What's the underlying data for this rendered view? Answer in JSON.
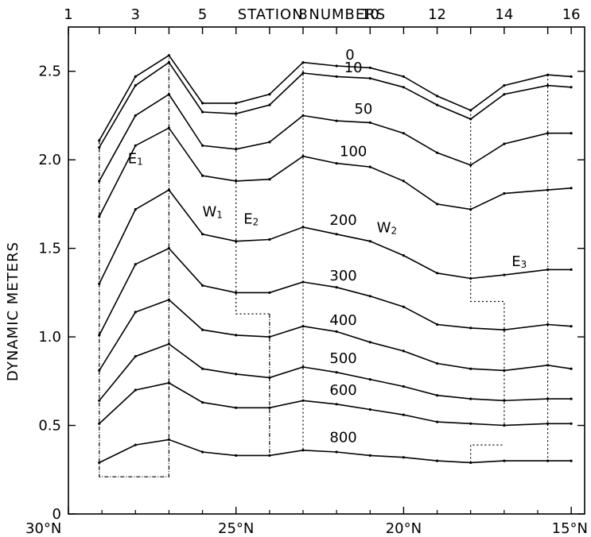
{
  "chart_data": {
    "type": "line",
    "title": "",
    "xlabel": "",
    "ylabel": "DYNAMIC METERS",
    "top_axis_label": "STATION NUMBERS",
    "ylim": [
      0,
      2.75
    ],
    "xlim": [
      30.0,
      14.6
    ],
    "y_ticks": [
      0,
      0.5,
      1.0,
      1.5,
      2.0,
      2.5
    ],
    "y_tick_labels": [
      "0",
      "0.5",
      "1.0",
      "1.5",
      "2.0",
      "2.5"
    ],
    "x_ticks": [
      30,
      25,
      20,
      15
    ],
    "x_tick_labels": [
      "30°N",
      "25°N",
      "20°N",
      "15°N"
    ],
    "top_ticks": [
      {
        "station": 1,
        "lat": 30.0
      },
      {
        "station": 2,
        "lat": 29.08
      },
      {
        "station": 3,
        "lat": 28.0
      },
      {
        "station": 4,
        "lat": 27.0
      },
      {
        "station": 5,
        "lat": 26.0
      },
      {
        "station": 6,
        "lat": 25.0
      },
      {
        "station": 7,
        "lat": 24.0
      },
      {
        "station": 8,
        "lat": 23.0
      },
      {
        "station": 9,
        "lat": 22.0
      },
      {
        "station": 10,
        "lat": 21.0
      },
      {
        "station": 11,
        "lat": 20.0
      },
      {
        "station": 12,
        "lat": 19.0
      },
      {
        "station": 13,
        "lat": 18.0
      },
      {
        "station": 14,
        "lat": 17.0
      },
      {
        "station": 15,
        "lat": 15.7
      },
      {
        "station": 16,
        "lat": 15.0
      }
    ],
    "top_tick_labels": [
      {
        "station": 1,
        "label": "1"
      },
      {
        "station": 3,
        "label": "3"
      },
      {
        "station": 5,
        "label": "5"
      },
      {
        "station": 8,
        "label": "8"
      },
      {
        "station": 10,
        "label": "10"
      },
      {
        "station": 12,
        "label": "12"
      },
      {
        "station": 14,
        "label": "14"
      },
      {
        "station": 16,
        "label": "16"
      }
    ],
    "x": [
      29.08,
      28.0,
      27.0,
      26.0,
      25.0,
      24.0,
      23.0,
      22.0,
      21.0,
      20.0,
      19.0,
      18.0,
      17.0,
      15.7,
      15.0
    ],
    "series": [
      {
        "name": "0",
        "values": [
          2.11,
          2.47,
          2.59,
          2.32,
          2.32,
          2.37,
          2.55,
          2.53,
          2.52,
          2.47,
          2.36,
          2.28,
          2.42,
          2.48,
          2.47
        ]
      },
      {
        "name": "10",
        "values": [
          2.07,
          2.42,
          2.55,
          2.27,
          2.26,
          2.31,
          2.49,
          2.47,
          2.46,
          2.41,
          2.31,
          2.23,
          2.37,
          2.42,
          2.41
        ]
      },
      {
        "name": "50",
        "values": [
          1.88,
          2.25,
          2.37,
          2.08,
          2.06,
          2.1,
          2.25,
          2.22,
          2.21,
          2.15,
          2.04,
          1.97,
          2.09,
          2.15,
          2.15
        ]
      },
      {
        "name": "100",
        "values": [
          1.68,
          2.08,
          2.18,
          1.91,
          1.88,
          1.89,
          2.02,
          1.98,
          1.96,
          1.88,
          1.75,
          1.72,
          1.81,
          1.83,
          1.84
        ]
      },
      {
        "name": "200",
        "values": [
          1.3,
          1.72,
          1.83,
          1.58,
          1.54,
          1.55,
          1.62,
          1.58,
          1.54,
          1.46,
          1.36,
          1.33,
          1.35,
          1.38,
          1.38
        ]
      },
      {
        "name": "300",
        "values": [
          1.01,
          1.41,
          1.5,
          1.29,
          1.25,
          1.25,
          1.31,
          1.28,
          1.23,
          1.17,
          1.07,
          1.05,
          1.04,
          1.07,
          1.06
        ]
      },
      {
        "name": "400",
        "values": [
          0.81,
          1.14,
          1.21,
          1.04,
          1.01,
          1.0,
          1.06,
          1.03,
          0.97,
          0.92,
          0.85,
          0.82,
          0.81,
          0.84,
          0.82
        ]
      },
      {
        "name": "500",
        "values": [
          0.64,
          0.89,
          0.96,
          0.82,
          0.79,
          0.77,
          0.83,
          0.8,
          0.76,
          0.72,
          0.67,
          0.65,
          0.64,
          0.65,
          0.65
        ]
      },
      {
        "name": "600",
        "values": [
          0.51,
          0.7,
          0.74,
          0.63,
          0.6,
          0.6,
          0.64,
          0.62,
          0.59,
          0.56,
          0.52,
          0.51,
          0.5,
          0.51,
          0.51
        ]
      },
      {
        "name": "800",
        "values": [
          0.29,
          0.39,
          0.42,
          0.35,
          0.33,
          0.33,
          0.36,
          0.35,
          0.33,
          0.32,
          0.3,
          0.29,
          0.3,
          0.3,
          0.3
        ]
      }
    ],
    "depth_labels": [
      "0",
      "10",
      "50",
      "100",
      "200",
      "300",
      "400",
      "500",
      "600",
      "800"
    ],
    "region_labels": [
      {
        "main": "E",
        "sub": "1"
      },
      {
        "main": "W",
        "sub": "1"
      },
      {
        "main": "E",
        "sub": "2"
      },
      {
        "main": "W",
        "sub": "2"
      },
      {
        "main": "E",
        "sub": "3"
      }
    ],
    "boundaries": [
      {
        "style": "dash-dot",
        "points": [
          [
            29.08,
            2.11
          ],
          [
            29.08,
            0.21
          ],
          [
            27.0,
            0.21
          ],
          [
            27.0,
            2.59
          ]
        ]
      },
      {
        "style": "dotted",
        "points": [
          [
            25.0,
            2.32
          ],
          [
            25.0,
            1.13
          ],
          [
            24.0,
            1.13
          ]
        ]
      },
      {
        "style": "dash-dot",
        "points": [
          [
            24.0,
            1.13
          ],
          [
            24.0,
            0.33
          ]
        ]
      },
      {
        "style": "dotted",
        "points": [
          [
            23.0,
            2.55
          ],
          [
            23.0,
            0.36
          ]
        ]
      },
      {
        "style": "dotted",
        "points": [
          [
            18.0,
            2.28
          ],
          [
            18.0,
            1.2
          ],
          [
            17.0,
            1.2
          ],
          [
            17.0,
            0.5
          ]
        ]
      },
      {
        "style": "dotted",
        "points": [
          [
            18.0,
            0.29
          ],
          [
            18.0,
            0.39
          ],
          [
            17.0,
            0.39
          ]
        ]
      },
      {
        "style": "dotted",
        "points": [
          [
            15.7,
            2.48
          ],
          [
            15.7,
            0.3
          ]
        ]
      }
    ],
    "grid": false,
    "legend": "none"
  }
}
